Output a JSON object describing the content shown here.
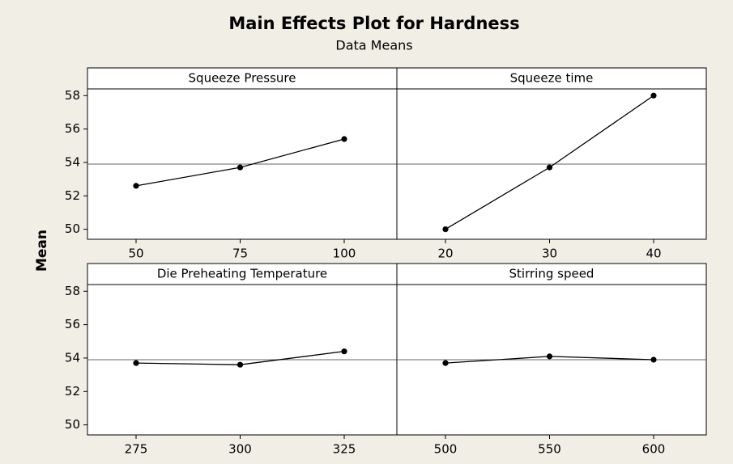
{
  "title": "Main Effects Plot for Hardness",
  "subtitle": "Data Means",
  "ylabel": "Mean",
  "chart_data": [
    {
      "type": "line",
      "title": "Squeeze Pressure",
      "categories": [
        "50",
        "75",
        "100"
      ],
      "values": [
        52.6,
        53.7,
        55.4
      ],
      "color": "#000000",
      "ylim": [
        49.4,
        58.4
      ],
      "yticks": [
        50,
        52,
        54,
        56,
        58
      ],
      "reference_line": 53.9
    },
    {
      "type": "line",
      "title": "Squeeze time",
      "categories": [
        "20",
        "30",
        "40"
      ],
      "values": [
        50.0,
        53.7,
        58.0
      ],
      "color": "#000000",
      "ylim": [
        49.4,
        58.4
      ],
      "yticks": [
        50,
        52,
        54,
        56,
        58
      ],
      "reference_line": 53.9
    },
    {
      "type": "line",
      "title": "Die Preheating Temperature",
      "categories": [
        "275",
        "300",
        "325"
      ],
      "values": [
        53.7,
        53.6,
        54.4
      ],
      "color": "#000000",
      "ylim": [
        49.4,
        58.4
      ],
      "yticks": [
        50,
        52,
        54,
        56,
        58
      ],
      "reference_line": 53.9
    },
    {
      "type": "line",
      "title": "Stirring speed",
      "categories": [
        "500",
        "550",
        "600"
      ],
      "values": [
        53.7,
        54.1,
        53.9
      ],
      "color": "#000000",
      "ylim": [
        49.4,
        58.4
      ],
      "yticks": [
        50,
        52,
        54,
        56,
        58
      ],
      "reference_line": 53.9
    }
  ]
}
